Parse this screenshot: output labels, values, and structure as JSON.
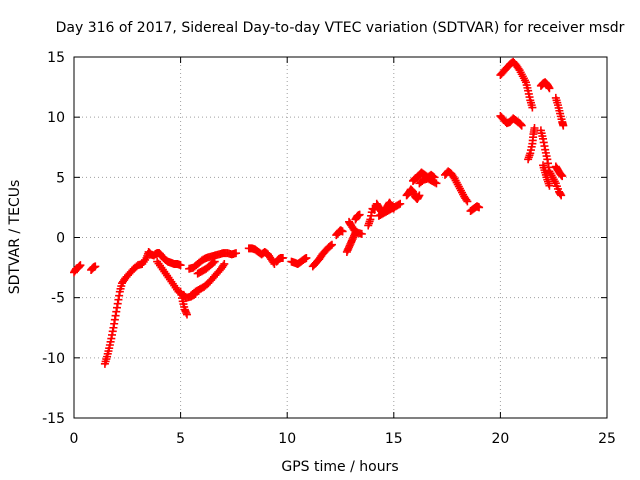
{
  "chart_data": {
    "type": "scatter",
    "title": "Day 316 of 2017, Sidereal Day-to-day VTEC variation (SDTVAR) for receiver msdr",
    "xlabel": "GPS time / hours",
    "ylabel": "SDTVAR / TECUs",
    "xlim": [
      0,
      25
    ],
    "ylim": [
      -15,
      15
    ],
    "xticks": [
      0,
      5,
      10,
      15,
      20,
      25
    ],
    "yticks": [
      -15,
      -10,
      -5,
      0,
      5,
      10,
      15
    ],
    "xtick_labels": [
      "0",
      "5",
      "10",
      "15",
      "20",
      "25"
    ],
    "ytick_labels": [
      "-15",
      "-10",
      "-5",
      "0",
      "5",
      "10",
      "15"
    ],
    "grid": true,
    "marker": "+",
    "color": "#ff0000",
    "series": [
      {
        "name": "SDTVAR",
        "segments": [
          [
            [
              0.0,
              -2.9
            ],
            [
              0.1,
              -2.6
            ],
            [
              0.2,
              -2.5
            ],
            [
              0.3,
              -2.3
            ]
          ],
          [
            [
              0.8,
              -2.7
            ],
            [
              0.9,
              -2.5
            ],
            [
              1.0,
              -2.4
            ]
          ],
          [
            [
              1.45,
              -10.5
            ],
            [
              1.55,
              -9.9
            ],
            [
              1.65,
              -9.2
            ],
            [
              1.75,
              -8.4
            ],
            [
              1.85,
              -7.5
            ],
            [
              1.95,
              -6.5
            ],
            [
              2.05,
              -5.5
            ],
            [
              2.15,
              -4.5
            ],
            [
              2.25,
              -3.8
            ],
            [
              2.4,
              -3.4
            ],
            [
              2.6,
              -3.0
            ],
            [
              2.8,
              -2.6
            ],
            [
              3.0,
              -2.3
            ],
            [
              3.2,
              -2.2
            ],
            [
              3.4,
              -1.7
            ],
            [
              3.5,
              -1.2
            ],
            [
              3.6,
              -1.4
            ],
            [
              3.75,
              -1.5
            ]
          ],
          [
            [
              3.8,
              -1.4
            ],
            [
              3.9,
              -1.3
            ],
            [
              4.0,
              -1.3
            ],
            [
              4.1,
              -1.5
            ],
            [
              4.25,
              -1.8
            ],
            [
              4.4,
              -2.0
            ],
            [
              4.55,
              -2.1
            ],
            [
              4.7,
              -2.2
            ],
            [
              4.85,
              -2.2
            ],
            [
              5.0,
              -2.3
            ]
          ],
          [
            [
              3.9,
              -2.0
            ],
            [
              4.1,
              -2.5
            ],
            [
              4.3,
              -3.0
            ],
            [
              4.5,
              -3.5
            ],
            [
              4.7,
              -4.0
            ],
            [
              4.9,
              -4.5
            ],
            [
              5.1,
              -4.8
            ],
            [
              5.3,
              -5.0
            ],
            [
              5.5,
              -4.9
            ],
            [
              5.7,
              -4.7
            ]
          ],
          [
            [
              5.0,
              -4.5
            ],
            [
              5.1,
              -5.3
            ],
            [
              5.2,
              -6.0
            ],
            [
              5.3,
              -6.4
            ]
          ],
          [
            [
              5.5,
              -4.8
            ],
            [
              5.7,
              -4.5
            ],
            [
              5.9,
              -4.3
            ],
            [
              6.1,
              -4.1
            ],
            [
              6.3,
              -3.8
            ],
            [
              6.5,
              -3.4
            ],
            [
              6.7,
              -3.0
            ],
            [
              6.9,
              -2.6
            ],
            [
              7.05,
              -2.2
            ]
          ],
          [
            [
              5.4,
              -2.6
            ],
            [
              5.6,
              -2.5
            ],
            [
              5.8,
              -2.2
            ],
            [
              6.0,
              -1.9
            ],
            [
              6.2,
              -1.7
            ],
            [
              6.4,
              -1.6
            ],
            [
              6.6,
              -1.5
            ],
            [
              6.8,
              -1.4
            ],
            [
              7.0,
              -1.3
            ],
            [
              7.2,
              -1.3
            ],
            [
              7.4,
              -1.4
            ],
            [
              7.6,
              -1.3
            ]
          ],
          [
            [
              5.8,
              -3.0
            ],
            [
              6.0,
              -2.8
            ],
            [
              6.2,
              -2.6
            ],
            [
              6.4,
              -2.3
            ],
            [
              6.6,
              -2.0
            ]
          ],
          [
            [
              8.2,
              -0.9
            ],
            [
              8.35,
              -0.9
            ],
            [
              8.5,
              -1.0
            ],
            [
              8.65,
              -1.2
            ],
            [
              8.8,
              -1.4
            ],
            [
              8.95,
              -1.2
            ],
            [
              9.1,
              -1.4
            ],
            [
              9.25,
              -1.8
            ],
            [
              9.4,
              -2.2
            ]
          ],
          [
            [
              9.5,
              -2.0
            ],
            [
              9.6,
              -1.8
            ],
            [
              9.7,
              -1.7
            ],
            [
              9.8,
              -1.7
            ]
          ],
          [
            [
              10.2,
              -2.0
            ],
            [
              10.35,
              -2.1
            ],
            [
              10.5,
              -2.2
            ],
            [
              10.65,
              -2.0
            ],
            [
              10.8,
              -1.8
            ],
            [
              10.9,
              -1.7
            ]
          ],
          [
            [
              11.2,
              -2.4
            ],
            [
              11.35,
              -2.1
            ],
            [
              11.5,
              -1.8
            ],
            [
              11.65,
              -1.4
            ],
            [
              11.8,
              -1.1
            ],
            [
              11.95,
              -0.8
            ],
            [
              12.1,
              -0.6
            ]
          ],
          [
            [
              12.3,
              0.2
            ],
            [
              12.4,
              0.4
            ],
            [
              12.5,
              0.6
            ],
            [
              12.6,
              0.5
            ]
          ],
          [
            [
              12.8,
              -1.2
            ],
            [
              12.9,
              -0.8
            ],
            [
              13.0,
              -0.4
            ],
            [
              13.1,
              0.0
            ],
            [
              13.2,
              0.4
            ]
          ],
          [
            [
              12.9,
              1.3
            ],
            [
              13.0,
              1.0
            ],
            [
              13.15,
              0.6
            ],
            [
              13.3,
              0.4
            ],
            [
              13.5,
              0.3
            ]
          ],
          [
            [
              13.2,
              1.5
            ],
            [
              13.3,
              1.8
            ],
            [
              13.4,
              1.9
            ]
          ],
          [
            [
              13.8,
              1.0
            ],
            [
              13.9,
              1.5
            ],
            [
              14.0,
              2.4
            ],
            [
              14.1,
              2.3
            ]
          ],
          [
            [
              14.3,
              1.8
            ],
            [
              14.5,
              2.0
            ],
            [
              14.7,
              2.2
            ],
            [
              14.9,
              2.4
            ],
            [
              15.1,
              2.6
            ],
            [
              15.3,
              2.8
            ]
          ],
          [
            [
              14.2,
              2.8
            ],
            [
              14.3,
              2.5
            ],
            [
              14.4,
              2.2
            ],
            [
              14.5,
              2.1
            ],
            [
              14.6,
              2.3
            ],
            [
              14.7,
              2.6
            ],
            [
              14.8,
              2.9
            ],
            [
              14.9,
              2.6
            ],
            [
              15.0,
              2.4
            ]
          ],
          [
            [
              15.6,
              3.5
            ],
            [
              15.7,
              3.7
            ],
            [
              15.8,
              4.0
            ],
            [
              15.9,
              3.8
            ],
            [
              16.0,
              3.4
            ],
            [
              16.1,
              3.2
            ],
            [
              16.2,
              3.5
            ]
          ],
          [
            [
              15.9,
              4.7
            ],
            [
              16.0,
              4.9
            ],
            [
              16.1,
              5.0
            ],
            [
              16.2,
              5.2
            ],
            [
              16.3,
              5.4
            ],
            [
              16.45,
              5.2
            ],
            [
              16.6,
              5.0
            ],
            [
              16.75,
              5.2
            ],
            [
              16.9,
              5.0
            ]
          ],
          [
            [
              16.2,
              4.5
            ],
            [
              16.4,
              4.8
            ],
            [
              16.6,
              4.9
            ],
            [
              16.8,
              4.7
            ],
            [
              17.0,
              4.5
            ]
          ],
          [
            [
              17.4,
              5.2
            ],
            [
              17.55,
              5.5
            ],
            [
              17.7,
              5.3
            ],
            [
              17.85,
              4.9
            ],
            [
              18.0,
              4.4
            ],
            [
              18.15,
              3.9
            ],
            [
              18.3,
              3.4
            ],
            [
              18.45,
              3.0
            ]
          ],
          [
            [
              18.6,
              2.2
            ],
            [
              18.75,
              2.4
            ],
            [
              18.9,
              2.6
            ],
            [
              19.0,
              2.5
            ]
          ],
          [
            [
              20.0,
              13.5
            ],
            [
              20.15,
              13.8
            ],
            [
              20.3,
              14.1
            ],
            [
              20.45,
              14.4
            ],
            [
              20.6,
              14.6
            ],
            [
              20.75,
              14.3
            ],
            [
              20.9,
              13.9
            ],
            [
              21.05,
              13.4
            ],
            [
              21.2,
              12.9
            ],
            [
              21.3,
              12.2
            ],
            [
              21.4,
              11.4
            ],
            [
              21.5,
              10.8
            ]
          ],
          [
            [
              20.0,
              10.1
            ],
            [
              20.15,
              9.8
            ],
            [
              20.3,
              9.5
            ],
            [
              20.45,
              9.6
            ],
            [
              20.6,
              9.9
            ],
            [
              20.75,
              9.7
            ],
            [
              20.9,
              9.5
            ],
            [
              21.0,
              9.3
            ]
          ],
          [
            [
              21.3,
              6.5
            ],
            [
              21.4,
              7.0
            ],
            [
              21.5,
              7.8
            ],
            [
              21.55,
              8.6
            ],
            [
              21.6,
              9.1
            ]
          ],
          [
            [
              21.9,
              12.6
            ],
            [
              22.0,
              12.8
            ],
            [
              22.1,
              12.9
            ],
            [
              22.2,
              12.7
            ],
            [
              22.3,
              12.4
            ]
          ],
          [
            [
              21.9,
              8.9
            ],
            [
              22.0,
              8.2
            ],
            [
              22.1,
              7.3
            ],
            [
              22.2,
              6.5
            ],
            [
              22.3,
              5.5
            ],
            [
              22.45,
              5.0
            ],
            [
              22.6,
              4.5
            ],
            [
              22.75,
              3.8
            ],
            [
              22.85,
              3.5
            ]
          ],
          [
            [
              22.0,
              6.0
            ],
            [
              22.1,
              5.4
            ],
            [
              22.2,
              4.8
            ],
            [
              22.3,
              4.3
            ]
          ],
          [
            [
              22.6,
              11.6
            ],
            [
              22.7,
              11.0
            ],
            [
              22.8,
              10.3
            ],
            [
              22.9,
              9.6
            ],
            [
              22.95,
              9.3
            ]
          ],
          [
            [
              22.6,
              5.9
            ],
            [
              22.7,
              5.6
            ],
            [
              22.8,
              5.3
            ],
            [
              22.9,
              5.1
            ]
          ]
        ]
      }
    ]
  }
}
